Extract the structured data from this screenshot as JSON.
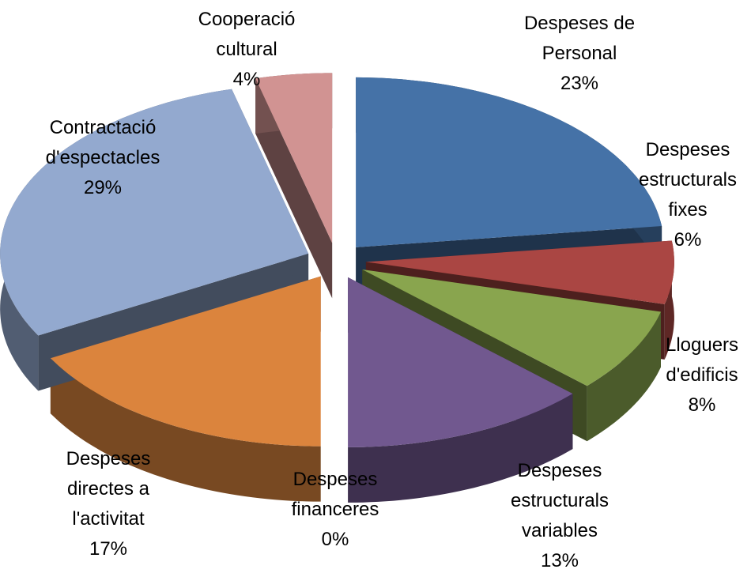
{
  "chart_data": {
    "type": "pie",
    "categories": [
      "Despeses de Personal",
      "Despeses estructurals fixes",
      "Lloguers d'edificis",
      "Despeses estructurals variables",
      "Despeses financeres",
      "Despeses directes a l'activitat",
      "Contractació d'espectacles",
      "Cooperació cultural"
    ],
    "values": [
      23,
      6,
      8,
      13,
      0,
      17,
      29,
      4
    ],
    "value_labels": [
      "23%",
      "6%",
      "8%",
      "13%",
      "0%",
      "17%",
      "29%",
      "4%"
    ],
    "colors": [
      "#4572a7",
      "#aa4643",
      "#89a54e",
      "#71588f",
      "#4198af",
      "#db843d",
      "#93a9cf",
      "#d19392"
    ]
  }
}
